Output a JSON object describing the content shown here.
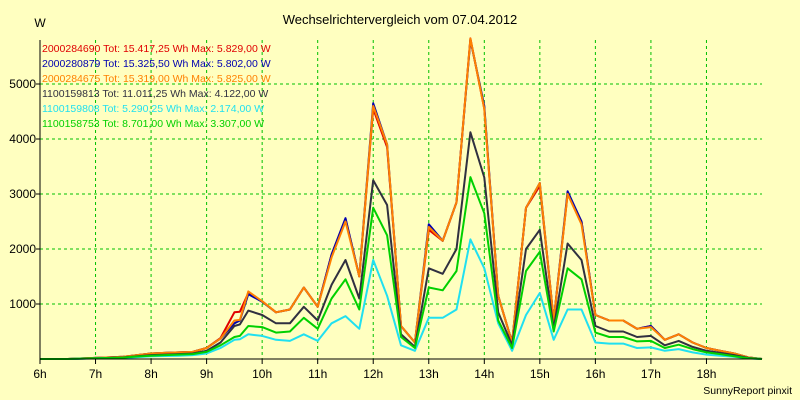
{
  "chart_data": {
    "type": "line",
    "title": "Wechselrichtervergleich vom 07.04.2012",
    "ylabel": "W",
    "xlabel": "",
    "ylim": [
      0,
      5800
    ],
    "xlim": [
      6,
      19
    ],
    "grid": true,
    "legend_position": "top-left",
    "yticks": [
      "1000",
      "2000",
      "3000",
      "4000",
      "5000"
    ],
    "ytick_values": [
      1000,
      2000,
      3000,
      4000,
      5000
    ],
    "xticks": [
      "6h",
      "7h",
      "8h",
      "9h",
      "10h",
      "11h",
      "12h",
      "13h",
      "14h",
      "15h",
      "16h",
      "17h",
      "18h"
    ],
    "xtick_values": [
      6,
      7,
      8,
      9,
      10,
      11,
      12,
      13,
      14,
      15,
      16,
      17,
      18
    ],
    "x": [
      6.0,
      6.5,
      7.0,
      7.25,
      7.5,
      7.75,
      8.0,
      8.25,
      8.5,
      8.75,
      9.0,
      9.25,
      9.5,
      9.6,
      9.75,
      10.0,
      10.25,
      10.5,
      10.75,
      11.0,
      11.25,
      11.5,
      11.75,
      12.0,
      12.25,
      12.5,
      12.75,
      13.0,
      13.25,
      13.5,
      13.75,
      14.0,
      14.25,
      14.5,
      14.75,
      15.0,
      15.25,
      15.5,
      15.75,
      16.0,
      16.25,
      16.5,
      16.75,
      17.0,
      17.25,
      17.5,
      17.75,
      18.0,
      18.25,
      18.5,
      18.75,
      19.0
    ],
    "series": [
      {
        "name": "2000284690",
        "label": "2000284690 Tot: 15.417,25 Wh Max: 5.829,00 W",
        "color": "#e00000",
        "values": [
          0,
          0,
          20,
          30,
          40,
          70,
          100,
          110,
          120,
          130,
          200,
          380,
          850,
          860,
          1200,
          1050,
          850,
          900,
          1300,
          950,
          1900,
          2550,
          1500,
          4550,
          3850,
          600,
          300,
          2350,
          2150,
          2850,
          5829,
          4550,
          1150,
          300,
          2750,
          3150,
          700,
          3000,
          2500,
          800,
          700,
          700,
          550,
          600,
          350,
          450,
          300,
          200,
          150,
          100,
          30,
          0
        ]
      },
      {
        "name": "2000280879",
        "label": "2000280879 Tot: 15.325,50 Wh Max: 5.802,00 W",
        "color": "#0000b0",
        "values": [
          0,
          0,
          20,
          30,
          40,
          70,
          100,
          110,
          120,
          130,
          200,
          370,
          650,
          700,
          1180,
          1040,
          850,
          900,
          1300,
          950,
          1900,
          2560,
          1500,
          4650,
          3900,
          600,
          300,
          2450,
          2150,
          2850,
          5802,
          4600,
          1150,
          300,
          2750,
          3200,
          700,
          3050,
          2500,
          800,
          700,
          700,
          550,
          600,
          350,
          450,
          300,
          200,
          150,
          100,
          30,
          0
        ]
      },
      {
        "name": "2000284675",
        "label": "2000284675 Tot: 15.319,00 Wh Max: 5.825,00 W",
        "color": "#ff8000",
        "values": [
          0,
          0,
          20,
          30,
          40,
          70,
          100,
          110,
          120,
          130,
          200,
          370,
          700,
          710,
          1230,
          1050,
          850,
          900,
          1300,
          950,
          1850,
          2500,
          1500,
          4600,
          3900,
          600,
          300,
          2400,
          2150,
          2850,
          5825,
          4550,
          1150,
          300,
          2750,
          3200,
          700,
          3000,
          2450,
          800,
          700,
          700,
          550,
          580,
          350,
          450,
          300,
          200,
          150,
          100,
          30,
          0
        ]
      },
      {
        "name": "1100159813",
        "label": "1100159813 Tot: 11.011,25 Wh Max: 4.122,00 W",
        "color": "#303040",
        "values": [
          0,
          0,
          15,
          20,
          30,
          50,
          70,
          80,
          90,
          100,
          150,
          300,
          600,
          630,
          880,
          800,
          650,
          650,
          950,
          700,
          1350,
          1800,
          1100,
          3250,
          2800,
          450,
          220,
          1650,
          1550,
          2000,
          4122,
          3300,
          850,
          250,
          2000,
          2350,
          550,
          2100,
          1800,
          600,
          500,
          500,
          400,
          420,
          250,
          330,
          220,
          150,
          110,
          70,
          20,
          0
        ]
      },
      {
        "name": "1100159808",
        "label": "1100159808 Tot: 5.290,25 Wh Max: 2.174,00 W",
        "color": "#20e0f0",
        "values": [
          0,
          0,
          10,
          15,
          20,
          35,
          50,
          55,
          60,
          70,
          100,
          200,
          350,
          360,
          450,
          420,
          350,
          330,
          450,
          330,
          650,
          780,
          550,
          1800,
          1150,
          250,
          150,
          750,
          750,
          900,
          2174,
          1650,
          650,
          150,
          800,
          1200,
          350,
          900,
          900,
          300,
          280,
          280,
          200,
          210,
          150,
          180,
          120,
          80,
          60,
          40,
          10,
          0
        ]
      },
      {
        "name": "1100158753",
        "label": "1100158753 Tot: 8.701,00 Wh Max: 3.307,00 W",
        "color": "#00d000",
        "values": [
          0,
          0,
          12,
          18,
          25,
          45,
          60,
          70,
          80,
          90,
          130,
          250,
          400,
          420,
          600,
          580,
          480,
          500,
          750,
          550,
          1100,
          1450,
          900,
          2750,
          2250,
          400,
          200,
          1300,
          1250,
          1600,
          3307,
          2650,
          700,
          200,
          1600,
          1950,
          500,
          1650,
          1450,
          480,
          400,
          400,
          320,
          330,
          200,
          260,
          180,
          120,
          90,
          50,
          15,
          0
        ]
      }
    ]
  },
  "footer": "SunnyReport pinxit"
}
